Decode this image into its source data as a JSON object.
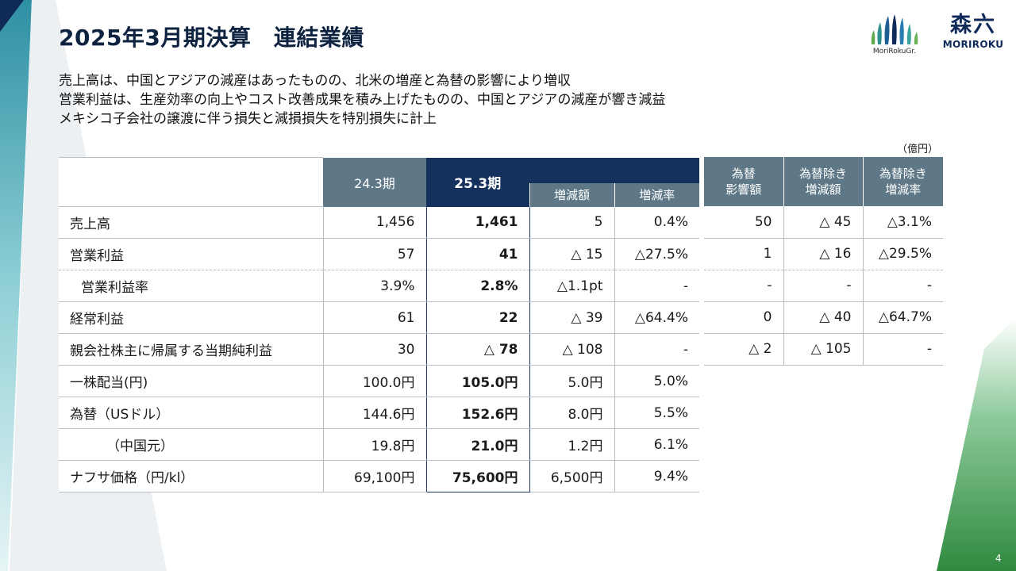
{
  "header": {
    "title": "2025年3月期決算　連結業績",
    "logo_group_text": "MoriRokuGr.",
    "logo_kanji": "森六",
    "logo_roman": "MORIROKU"
  },
  "summary": [
    "売上高は、中国とアジアの減産はあったものの、北米の増産と為替の影響により増収",
    "営業利益は、生産効率の向上やコスト改善成果を積み上げたものの、中国とアジアの減産が響き減益",
    "メキシコ子会社の譲渡に伴う損失と減損損失を特別損失に計上"
  ],
  "unit_label": "（億円）",
  "main_table": {
    "col_prev": "24.3期",
    "col_cur": "25.3期",
    "col_diff": "増減額",
    "col_rate": "増減率",
    "rows": [
      {
        "label": "売上高",
        "prev": "1,456",
        "cur": "1,461",
        "diff": "5",
        "rate": "0.4%"
      },
      {
        "label": "営業利益",
        "prev": "57",
        "cur": "41",
        "diff": "△ 15",
        "rate": "△27.5%"
      },
      {
        "label": "営業利益率",
        "prev": "3.9%",
        "cur": "2.8%",
        "diff": "△1.1pt",
        "rate": "-"
      },
      {
        "label": "経常利益",
        "prev": "61",
        "cur": "22",
        "diff": "△ 39",
        "rate": "△64.4%"
      },
      {
        "label": "親会社株主に帰属する当期純利益",
        "prev": "30",
        "cur": "△ 78",
        "diff": "△ 108",
        "rate": "-"
      },
      {
        "label": "一株配当(円)",
        "prev": "100.0円",
        "cur": "105.0円",
        "diff": "5.0円",
        "rate": "5.0%"
      },
      {
        "label": "為替（USドル）",
        "prev": "144.6円",
        "cur": "152.6円",
        "diff": "8.0円",
        "rate": "5.5%"
      },
      {
        "label": "（中国元）",
        "prev": "19.8円",
        "cur": "21.0円",
        "diff": "1.2円",
        "rate": "6.1%"
      },
      {
        "label": "ナフサ価格（円/kl）",
        "prev": "69,100円",
        "cur": "75,600円",
        "diff": "6,500円",
        "rate": "9.4%"
      }
    ]
  },
  "fx_table": {
    "headers": [
      [
        "為替",
        "影響額"
      ],
      [
        "為替除き",
        "増減額"
      ],
      [
        "為替除き",
        "増減率"
      ]
    ],
    "rows": [
      [
        "50",
        "△ 45",
        "△3.1%"
      ],
      [
        "1",
        "△ 16",
        "△29.5%"
      ],
      [
        "-",
        "-",
        "-"
      ],
      [
        "0",
        "△ 40",
        "△64.7%"
      ],
      [
        "△ 2",
        "△ 105",
        "-"
      ]
    ]
  },
  "page_number": "4",
  "colors": {
    "title_navy": "#0d2340",
    "header_navy": "#14305c",
    "header_slate": "#5e7888",
    "deco_teal": "#3aa0ad",
    "deco_green": "#3f9a4c"
  }
}
